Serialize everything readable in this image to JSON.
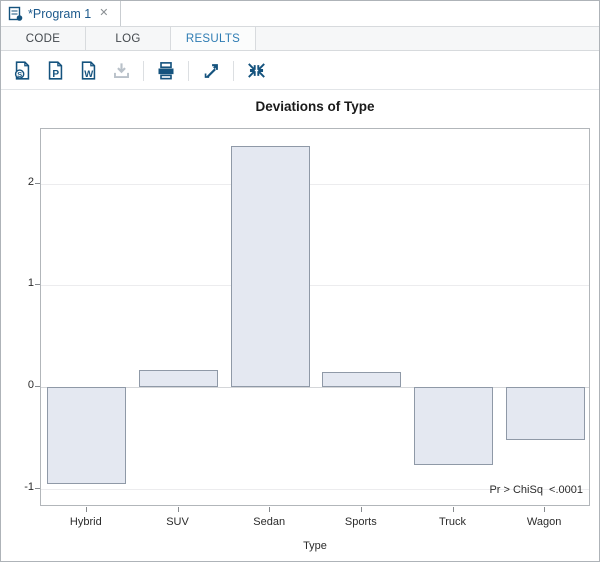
{
  "window": {
    "tab": {
      "title": "*Program 1",
      "close_glyph": "✕",
      "icon": "program-icon"
    },
    "subtabs": [
      {
        "label": "CODE",
        "active": false
      },
      {
        "label": "LOG",
        "active": false
      },
      {
        "label": "RESULTS",
        "active": true
      }
    ],
    "toolbar": {
      "icons": [
        {
          "name": "download-html-icon",
          "letter": "S",
          "disabled": false
        },
        {
          "name": "download-pdf-icon",
          "letter": "P",
          "disabled": false
        },
        {
          "name": "download-rtf-icon",
          "letter": "W",
          "disabled": false
        },
        {
          "name": "download-icon",
          "disabled": true
        },
        {
          "name": "print-icon",
          "disabled": false
        },
        {
          "name": "open-new-window-icon",
          "disabled": false
        },
        {
          "name": "exit-maximized-icon",
          "disabled": false
        }
      ]
    }
  },
  "colors": {
    "accent_blue": "#2e7cb3",
    "tab_title_blue": "#1d5a8c",
    "icon_navy": "#15537e",
    "icon_disabled": "#b9c1c9",
    "bar_fill": "#e4e8f1",
    "bar_border": "#8f99a7",
    "grid": "#ececee",
    "frame_border": "#b2b6ba"
  },
  "chart_data": {
    "type": "bar",
    "title": "Deviations of Type",
    "xlabel": "Type",
    "ylabel": "",
    "categories": [
      "Hybrid",
      "SUV",
      "Sedan",
      "Sports",
      "Truck",
      "Wagon"
    ],
    "values": [
      -0.95,
      0.17,
      2.37,
      0.15,
      -0.77,
      -0.52
    ],
    "yticks": [
      -1,
      0,
      1,
      2
    ],
    "ylim": [
      -1.18,
      2.54
    ],
    "grid": true,
    "legend": "none",
    "annotation": "Pr > ChiSq  <.0001",
    "bar_fill": "#e4e8f1",
    "bar_border": "#8f99a7"
  }
}
